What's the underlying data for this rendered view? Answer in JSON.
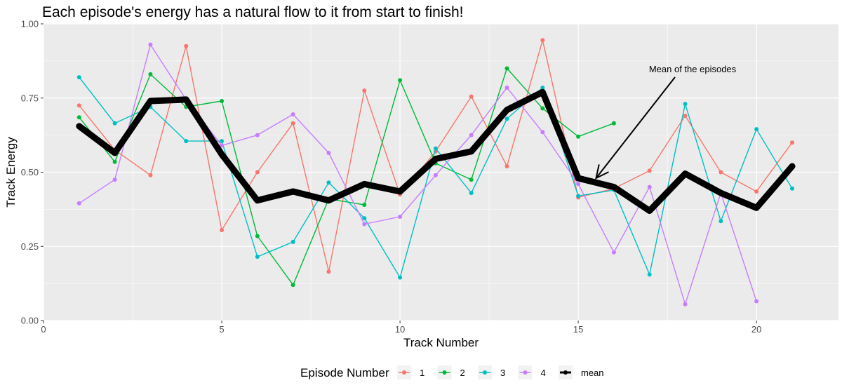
{
  "chart_data": {
    "type": "line",
    "title": "Each episode's energy has a natural flow to it from start to finish!",
    "xlabel": "Track Number",
    "ylabel": "Track Energy",
    "xlim": [
      0,
      22.3
    ],
    "ylim": [
      0,
      1
    ],
    "x_ticks": [
      0,
      5,
      10,
      15,
      20
    ],
    "x_tick_labels": [
      "0",
      "5",
      "10",
      "15",
      "20"
    ],
    "y_ticks": [
      0,
      0.25,
      0.5,
      0.75,
      1
    ],
    "y_tick_labels": [
      "0.00",
      "0.25",
      "0.50",
      "0.75",
      "1.00"
    ],
    "grid": true,
    "legend_title": "Episode Number",
    "legend_position": "bottom",
    "series": [
      {
        "name": "1",
        "color": "#F8766D",
        "x": [
          1,
          2,
          3,
          4,
          5,
          6,
          7,
          8,
          9,
          10,
          11,
          12,
          13,
          14,
          15,
          16,
          17,
          18,
          19,
          20,
          21
        ],
        "values": [
          0.725,
          0.575,
          0.49,
          0.925,
          0.305,
          0.5,
          0.665,
          0.165,
          0.775,
          0.425,
          0.57,
          0.755,
          0.52,
          0.945,
          0.415,
          0.445,
          0.505,
          0.69,
          0.5,
          0.435,
          0.6
        ]
      },
      {
        "name": "2",
        "color": "#00BA38",
        "x": [
          1,
          2,
          3,
          4,
          5,
          6,
          7,
          8,
          9,
          10,
          11,
          12,
          13,
          14,
          15,
          16
        ],
        "values": [
          0.685,
          0.535,
          0.83,
          0.72,
          0.74,
          0.285,
          0.12,
          0.41,
          0.39,
          0.81,
          0.53,
          0.475,
          0.85,
          0.715,
          0.62,
          0.665
        ]
      },
      {
        "name": "3",
        "color": "#00BFC4",
        "x": [
          1,
          2,
          3,
          4,
          5,
          6,
          7,
          8,
          9,
          10,
          11,
          12,
          13,
          14,
          15,
          16,
          17,
          18,
          19,
          20,
          21
        ],
        "values": [
          0.82,
          0.665,
          0.72,
          0.605,
          0.605,
          0.215,
          0.265,
          0.465,
          0.345,
          0.145,
          0.58,
          0.43,
          0.68,
          0.785,
          0.42,
          0.44,
          0.155,
          0.73,
          0.335,
          0.645,
          0.445
        ]
      },
      {
        "name": "4",
        "color": "#C77CFF",
        "x": [
          1,
          2,
          3,
          4,
          5,
          6,
          7,
          8,
          9,
          10,
          11,
          12,
          13,
          14,
          15,
          16,
          17,
          18,
          19,
          20
        ],
        "values": [
          0.395,
          0.475,
          0.93,
          0.745,
          0.59,
          0.625,
          0.695,
          0.565,
          0.325,
          0.35,
          0.49,
          0.625,
          0.785,
          0.635,
          0.46,
          0.23,
          0.45,
          0.055,
          0.43,
          0.065
        ]
      },
      {
        "name": "mean",
        "color": "#000000",
        "thick": true,
        "x": [
          1,
          2,
          3,
          4,
          5,
          6,
          7,
          8,
          9,
          10,
          11,
          12,
          13,
          14,
          15,
          16,
          17,
          18,
          19,
          20,
          21
        ],
        "values": [
          0.655,
          0.565,
          0.74,
          0.745,
          0.56,
          0.405,
          0.435,
          0.405,
          0.46,
          0.435,
          0.545,
          0.57,
          0.71,
          0.77,
          0.48,
          0.45,
          0.37,
          0.495,
          0.43,
          0.38,
          0.52
        ]
      }
    ],
    "annotation": {
      "text": "Mean of the episodes",
      "arrow_to": [
        15.5,
        0.48
      ]
    }
  }
}
